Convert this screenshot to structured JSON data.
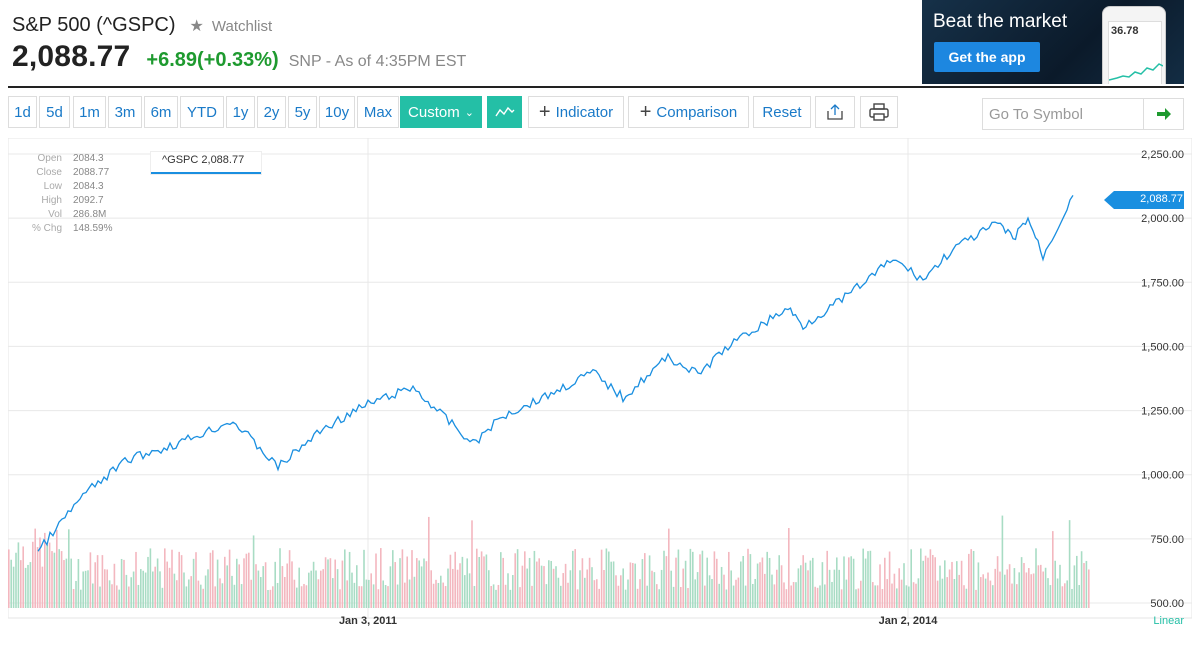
{
  "header": {
    "title": "S&P 500 (^GSPC)",
    "watchlist_label": "Watchlist",
    "price": "2,088.77",
    "change": "+6.89(+0.33%)",
    "as_of": "SNP - As of 4:35PM EST"
  },
  "ad": {
    "title": "Beat the market",
    "button_label": "Get the app",
    "phone_value": "36.78"
  },
  "toolbar": {
    "ranges": [
      "1d",
      "5d",
      "1m",
      "3m",
      "6m",
      "YTD",
      "1y",
      "2y",
      "5y",
      "10y",
      "Max"
    ],
    "custom_label": "Custom",
    "indicator_label": "Indicator",
    "comparison_label": "Comparison",
    "reset_label": "Reset",
    "goto_placeholder": "Go To Symbol"
  },
  "ohlc": {
    "labels": [
      "Open",
      "Close",
      "Low",
      "High",
      "Vol",
      "% Chg"
    ],
    "values": [
      "2084.3",
      "2088.77",
      "2084.3",
      "2092.7",
      "286.8M",
      "148.59%"
    ]
  },
  "legend_tag": "^GSPC 2,088.77",
  "price_flag": "2,088.77",
  "colors": {
    "line": "#1a8fe0",
    "accent_teal": "#24bfa6",
    "up": "#1e9a2f",
    "vol_up": "#a8dcc4",
    "vol_down": "#f3b7bf"
  },
  "chart_data": {
    "type": "line",
    "series": [
      {
        "name": "^GSPC",
        "x": [
          "2009-03",
          "2009-06",
          "2009-09",
          "2009-12",
          "2010-04",
          "2010-07",
          "2010-10",
          "2011-01",
          "2011-04",
          "2011-08",
          "2011-10",
          "2012-01",
          "2012-04",
          "2012-06",
          "2012-09",
          "2012-11",
          "2013-01",
          "2013-05",
          "2013-06",
          "2013-09",
          "2013-12",
          "2014-02",
          "2014-04",
          "2014-07",
          "2014-08",
          "2014-09",
          "2014-10",
          "2014-12"
        ],
        "values": [
          700,
          920,
          1060,
          1115,
          1210,
          1030,
          1180,
          1275,
          1340,
          1120,
          1230,
          1310,
          1400,
          1300,
          1460,
          1390,
          1500,
          1650,
          1580,
          1700,
          1840,
          1760,
          1880,
          1980,
          1920,
          2000,
          1850,
          2088.77
        ]
      }
    ],
    "xlabel": "",
    "ylabel": "",
    "x_ticks": [
      "Jan 3, 2011",
      "Jan 2, 2014"
    ],
    "y_ticks": [
      "2,250.00",
      "2,000.00",
      "1,750.00",
      "1,500.00",
      "1,250.00",
      "1,000.00",
      "750.00",
      "500.00"
    ],
    "ylim": [
      500,
      2250
    ],
    "scale_label": "Linear",
    "grid": true,
    "volume_bars": true
  }
}
